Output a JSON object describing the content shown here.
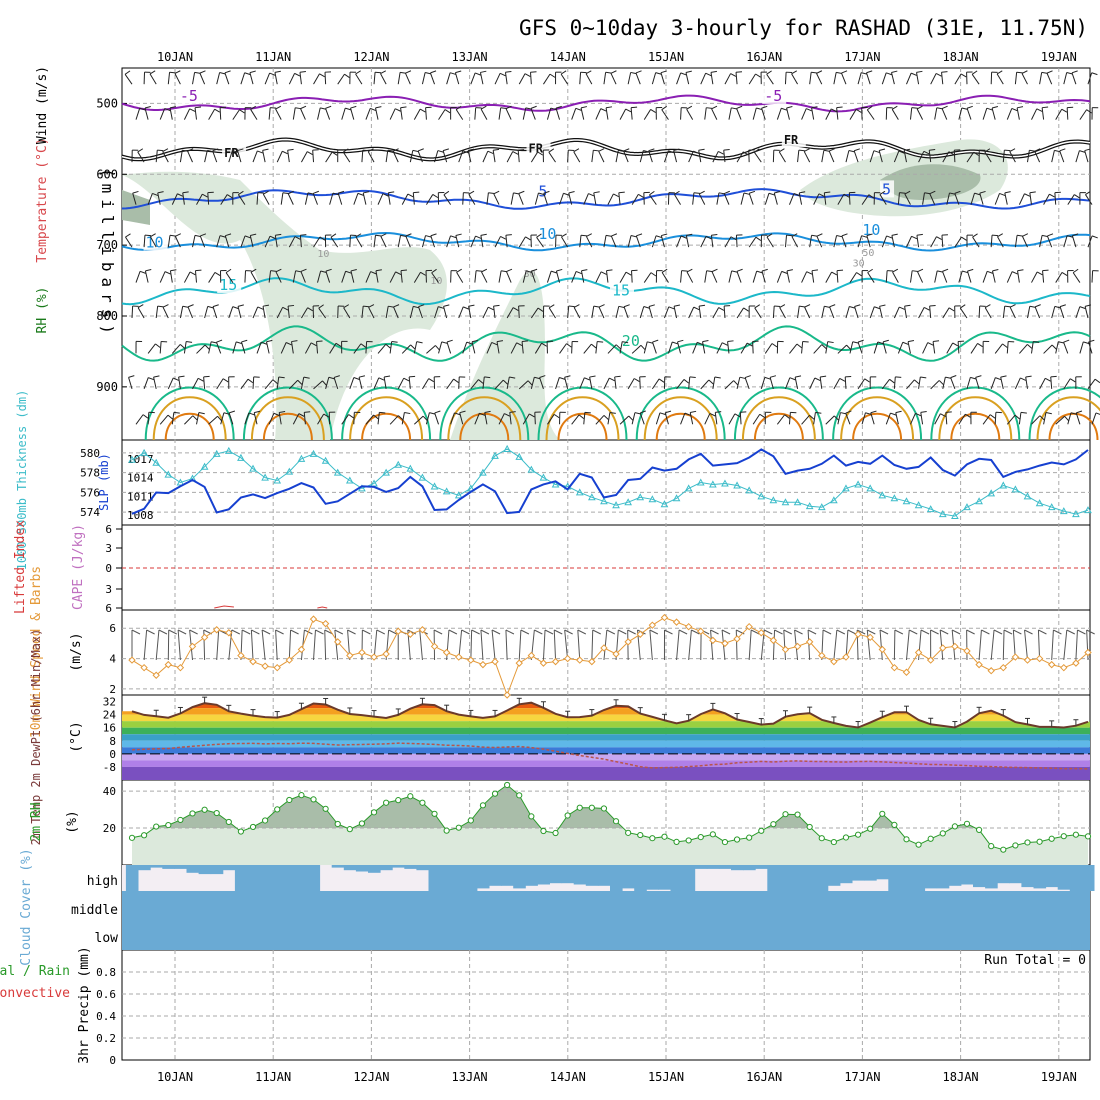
{
  "title": "GFS 0~10day 3-hourly for RASHAD (31E, 11.75N)",
  "colors": {
    "temp_minus5": "#8a1fb3",
    "temp_fr": "#111111",
    "temp_5": "#1f4fd8",
    "temp_10": "#1a8fdc",
    "temp_15": "#1cb8c9",
    "temp_20": "#19b98a",
    "temp_25": "#d9a020",
    "temp_30": "#e07a10",
    "rh_fill": "#dce9dc",
    "rh_fill_dark": "#a9bda9",
    "slp": "#1640d0",
    "thickness": "#3cbcc9",
    "lifted_index": "#d83a3a",
    "wind_speed": "#e49a3a",
    "temp_line": "#6b3a2a",
    "dewpt_line": "#b8554a",
    "rh2m": "#2a9a2a",
    "cloud": "#6aaad4",
    "grid": "#aaaaaa"
  },
  "chart_data": [
    {
      "name": "upper_air",
      "type": "contour",
      "date_ticks": [
        "10JAN",
        "11JAN",
        "12JAN",
        "13JAN",
        "14JAN",
        "15JAN",
        "16JAN",
        "17JAN",
        "18JAN",
        "19JAN"
      ],
      "ylabel_parts": [
        "RH (%)",
        "Temperature (°C)",
        "Wind (m/s)"
      ],
      "y_axis_title": "(millibars)",
      "pressure_range": [
        450,
        975
      ],
      "pressure_ticks": [
        "500",
        "600",
        "700",
        "800",
        "900"
      ],
      "contour_levels": [
        {
          "label": "-5",
          "pressure": 500,
          "color_key": "temp_minus5"
        },
        {
          "label": "FR",
          "pressure": 565,
          "color_key": "temp_fr"
        },
        {
          "label": "5",
          "pressure": 635,
          "color_key": "temp_5"
        },
        {
          "label": "10",
          "pressure": 695,
          "color_key": "temp_10"
        },
        {
          "label": "15",
          "pressure": 765,
          "color_key": "temp_15"
        },
        {
          "label": "20",
          "pressure": 840,
          "color_key": "temp_20"
        }
      ],
      "contour_label_positions": [
        {
          "text": "-5",
          "day": 0.05,
          "pressure": 495,
          "color_key": "temp_minus5"
        },
        {
          "text": "-5",
          "day": 6.0,
          "pressure": 495,
          "color_key": "temp_minus5"
        },
        {
          "text": "FR",
          "day": 0.5,
          "pressure": 574,
          "color_key": "temp_fr"
        },
        {
          "text": "FR",
          "day": 3.6,
          "pressure": 568,
          "color_key": "temp_fr"
        },
        {
          "text": "FR",
          "day": 6.2,
          "pressure": 556,
          "color_key": "temp_fr"
        },
        {
          "text": "5",
          "day": 3.7,
          "pressure": 630,
          "color_key": "temp_5"
        },
        {
          "text": "5",
          "day": 7.2,
          "pressure": 627,
          "color_key": "temp_5"
        },
        {
          "text": "10",
          "day": -0.3,
          "pressure": 702,
          "color_key": "temp_10"
        },
        {
          "text": "10",
          "day": 3.7,
          "pressure": 690,
          "color_key": "temp_10"
        },
        {
          "text": "10",
          "day": 7.0,
          "pressure": 684,
          "color_key": "temp_10"
        },
        {
          "text": "15",
          "day": 0.45,
          "pressure": 762,
          "color_key": "temp_15"
        },
        {
          "text": "15",
          "day": 4.45,
          "pressure": 770,
          "color_key": "temp_15"
        },
        {
          "text": "20",
          "day": 4.55,
          "pressure": 841,
          "color_key": "temp_20"
        }
      ],
      "rh_contour_labels": [
        "10",
        "10",
        "30",
        "30",
        "50"
      ]
    },
    {
      "name": "slp_thickness",
      "type": "line",
      "ylabel_left": "1000-500mb Thickness (dm)",
      "ylabel_right": "SLP (mb)",
      "thickness_ticks": [
        "580",
        "578",
        "576",
        "574"
      ],
      "slp_ticks": [
        "1017",
        "1014",
        "1011",
        "1008"
      ],
      "series": [
        {
          "name": "Thickness (dm)",
          "color_key": "thickness",
          "range": [
            573.2,
            580.8
          ],
          "values": [
            579.3,
            580.0,
            579.0,
            577.8,
            577.0,
            577.4,
            578.6,
            579.9,
            580.2,
            579.5,
            578.4,
            577.5,
            577.2,
            578.1,
            579.4,
            579.9,
            579.2,
            578.0,
            577.2,
            576.4,
            576.9,
            578.0,
            578.8,
            578.4,
            577.5,
            576.6,
            576.1,
            575.7,
            576.4,
            578.0,
            579.7,
            580.4,
            579.6,
            578.3,
            577.5,
            576.8,
            576.6,
            576.0,
            575.5,
            575.1,
            574.7,
            575.0,
            575.5,
            575.3,
            574.8,
            575.4,
            576.4,
            577.0,
            576.8,
            576.9,
            576.7,
            576.2,
            575.6,
            575.2,
            575.0,
            575.0,
            574.6,
            574.5,
            575.2,
            576.4,
            576.8,
            576.4,
            575.7,
            575.4,
            575.1,
            574.7,
            574.3,
            573.8,
            573.6,
            574.5,
            575.1,
            575.9,
            576.7,
            576.3,
            575.6,
            574.9,
            574.5,
            574.1,
            573.8,
            574.2
          ]
        },
        {
          "name": "SLP (mb)",
          "color_key": "slp",
          "range": [
            1007.2,
            1019.2
          ],
          "values": [
            1008.2,
            1009.0,
            1011.6,
            1011.5,
            1012.6,
            1013.6,
            1012.5,
            1008.4,
            1008.9,
            1010.8,
            1011.3,
            1010.7,
            1011.5,
            1012.2,
            1013.1,
            1012.4,
            1009.8,
            1010.2,
            1011.4,
            1012.6,
            1012.5,
            1011.7,
            1012.3,
            1014.1,
            1012.6,
            1008.8,
            1008.9,
            1010.4,
            1011.7,
            1012.9,
            1011.8,
            1008.3,
            1008.5,
            1012.1,
            1012.9,
            1013.4,
            1012.1,
            1014.6,
            1014.0,
            1010.8,
            1011.2,
            1013.6,
            1013.8,
            1015.6,
            1015.1,
            1015.4,
            1016.9,
            1017.8,
            1015.9,
            1016.1,
            1016.3,
            1017.2,
            1018.5,
            1017.4,
            1014.6,
            1015.1,
            1015.4,
            1016.2,
            1017.5,
            1015.9,
            1016.5,
            1016.2,
            1017.5,
            1016.0,
            1015.4,
            1015.7,
            1017.2,
            1015.2,
            1014.3,
            1016.1,
            1017.0,
            1016.8,
            1014.1,
            1014.9,
            1015.3,
            1015.9,
            1016.4,
            1016.1,
            1016.9,
            1018.4
          ]
        }
      ]
    },
    {
      "name": "stability",
      "type": "line",
      "ylabel_left": "Lifted Index",
      "ylabel_right": "CAPE (J/kg)",
      "ticks": [
        "6",
        "3",
        "0",
        "3",
        "6"
      ],
      "lifted_index_zero_line": 0,
      "cape_values_note": ""
    },
    {
      "name": "wind10m",
      "type": "line",
      "ylabel": "10m Wind Speed & Barbs",
      "units": "(m/s)",
      "ticks": [
        "6",
        "4",
        "2"
      ],
      "range": [
        1.6,
        7.2
      ],
      "series": [
        {
          "name": "10m Wind Speed",
          "color_key": "wind_speed",
          "values": [
            3.9,
            3.4,
            2.9,
            3.6,
            3.4,
            4.8,
            5.4,
            5.9,
            5.7,
            4.2,
            3.8,
            3.5,
            3.4,
            3.9,
            4.6,
            6.6,
            6.3,
            5.1,
            4.2,
            4.4,
            4.1,
            4.3,
            5.8,
            5.6,
            5.9,
            4.8,
            4.4,
            4.1,
            3.9,
            3.6,
            3.8,
            1.6,
            3.7,
            4.2,
            3.7,
            3.8,
            4.0,
            3.9,
            3.8,
            4.7,
            4.3,
            5.1,
            5.6,
            6.2,
            6.7,
            6.4,
            6.1,
            5.8,
            5.2,
            5.0,
            5.3,
            6.1,
            5.7,
            5.2,
            4.6,
            4.8,
            5.1,
            4.2,
            3.8,
            4.1,
            5.6,
            5.4,
            4.6,
            3.4,
            3.1,
            4.4,
            3.9,
            4.7,
            4.8,
            4.5,
            3.6,
            3.2,
            3.4,
            4.1,
            3.9,
            4.0,
            3.6,
            3.4,
            3.7,
            4.4
          ]
        }
      ]
    },
    {
      "name": "temp2m",
      "type": "area",
      "ylabel": "2m Temp 2m DewPt (6hr Min/Max)",
      "units": "(°C)",
      "ticks": [
        "32",
        "24",
        "16",
        "8",
        "0",
        "-8"
      ],
      "range": [
        -16,
        36
      ],
      "series": [
        {
          "name": "2m Temp",
          "color_key": "temp_line",
          "values": [
            26.0,
            23.8,
            23.0,
            22.1,
            24.7,
            28.6,
            31.0,
            30.0,
            26.0,
            24.6,
            23.4,
            22.5,
            22.2,
            23.8,
            27.3,
            30.8,
            30.2,
            27.0,
            24.4,
            23.7,
            22.8,
            21.9,
            23.8,
            27.6,
            30.3,
            29.8,
            26.1,
            24.0,
            22.9,
            22.0,
            22.9,
            26.5,
            30.3,
            31.3,
            28.2,
            24.5,
            22.4,
            22.5,
            23.4,
            26.8,
            29.4,
            29.0,
            24.6,
            22.6,
            20.5,
            18.6,
            20.3,
            24.3,
            27.2,
            24.8,
            21.0,
            19.5,
            17.9,
            18.5,
            22.7,
            24.2,
            24.9,
            20.8,
            18.9,
            17.1,
            16.1,
            19.1,
            22.4,
            25.4,
            25.5,
            20.7,
            18.1,
            17.1,
            16.1,
            19.7,
            24.8,
            26.4,
            23.4,
            19.4,
            18.0,
            16.5,
            16.5,
            16.1,
            17.2,
            19.6
          ]
        },
        {
          "name": "2m DewPt",
          "color_key": "dewpt_line",
          "values": [
            2.5,
            2.8,
            3.1,
            3.3,
            4.0,
            4.6,
            5.2,
            5.8,
            6.2,
            6.3,
            6.4,
            6.1,
            6.3,
            6.2,
            6.5,
            6.4,
            5.9,
            5.4,
            5.6,
            5.7,
            5.9,
            6.1,
            6.6,
            6.3,
            6.1,
            5.8,
            5.3,
            5.1,
            4.8,
            4.1,
            3.9,
            4.2,
            4.5,
            3.8,
            2.9,
            1.6,
            0.3,
            -1.0,
            -2.1,
            -3.2,
            -4.8,
            -6.3,
            -7.9,
            -8.6,
            -8.4,
            -8.2,
            -7.8,
            -7.3,
            -6.6,
            -6.3,
            -5.5,
            -5.1,
            -4.6,
            -5.0,
            -4.5,
            -4.3,
            -4.6,
            -4.7,
            -4.9,
            -5.0,
            -4.7,
            -4.6,
            -4.9,
            -5.3,
            -5.6,
            -6.1,
            -6.5,
            -6.6,
            -6.9,
            -7.2,
            -7.6,
            -7.8,
            -8.1,
            -8.3,
            -8.4,
            -8.6,
            -8.8,
            -9.1,
            -9.0,
            -9.2
          ]
        }
      ],
      "max_bars_note": "6hr max",
      "zero_line": 0
    },
    {
      "name": "rh2m",
      "type": "area",
      "ylabel": "2m RH",
      "units": "(%)",
      "ticks": [
        "40",
        "20"
      ],
      "range": [
        0,
        46
      ],
      "series": [
        {
          "name": "2m RH",
          "color_key": "rh2m",
          "values": [
            14.7,
            16.1,
            20.8,
            21.6,
            24.4,
            27.9,
            29.9,
            28.1,
            23.3,
            18.1,
            20.6,
            24.1,
            30.1,
            35.2,
            37.8,
            35.5,
            30.4,
            22.2,
            19.4,
            22.5,
            28.5,
            33.7,
            35.1,
            37.2,
            33.7,
            27.7,
            18.6,
            20.2,
            24.1,
            32.3,
            38.6,
            43.3,
            37.7,
            26.3,
            18.4,
            17.3,
            26.8,
            31.0,
            31.0,
            30.6,
            23.7,
            17.4,
            16.2,
            14.5,
            15.3,
            12.5,
            13.3,
            15.1,
            16.6,
            12.4,
            13.8,
            14.8,
            18.5,
            22.1,
            27.5,
            27.3,
            20.6,
            14.5,
            12.4,
            14.9,
            16.4,
            19.6,
            27.7,
            21.7,
            13.9,
            11.0,
            14.2,
            17.1,
            20.9,
            22.3,
            19.0,
            10.2,
            8.3,
            10.6,
            12.2,
            12.6,
            14.2,
            15.6,
            16.4,
            15.5
          ]
        }
      ]
    },
    {
      "name": "cloud_cover",
      "type": "bar",
      "ylabel": "Cloud Cover (%)",
      "levels": [
        "high",
        "middle",
        "low"
      ],
      "series": [
        {
          "name": "high",
          "color_key": "cloud",
          "values": [
            100,
            20,
            10,
            15,
            15,
            30,
            35,
            35,
            20,
            100,
            100,
            100,
            100,
            100,
            100,
            100,
            0,
            10,
            20,
            25,
            30,
            20,
            10,
            15,
            20,
            100,
            100,
            100,
            100,
            90,
            80,
            80,
            90,
            80,
            75,
            70,
            70,
            75,
            80,
            80,
            100,
            90,
            100,
            95,
            95,
            100,
            100,
            15,
            15,
            15,
            20,
            20,
            15,
            100,
            100,
            100,
            100,
            100,
            80,
            70,
            60,
            60,
            55,
            100,
            100,
            100,
            90,
            90,
            80,
            75,
            85,
            90,
            70,
            70,
            85,
            90,
            85,
            95,
            100,
            100
          ]
        },
        {
          "name": "middle",
          "color_key": "cloud",
          "values": [
            100
          ]
        },
        {
          "name": "low",
          "color_key": "cloud",
          "values": [
            100
          ]
        }
      ]
    },
    {
      "name": "precip",
      "type": "bar",
      "ylabel": "3hr Precip (mm)",
      "ylabel_left_a": "Total / Rain",
      "ylabel_left_b": "Convective",
      "ticks": [
        "0.8",
        "0.6",
        "0.4",
        "0.2",
        "0"
      ],
      "range": [
        0,
        1
      ],
      "run_total_label": "Run Total = 0",
      "values": []
    }
  ]
}
